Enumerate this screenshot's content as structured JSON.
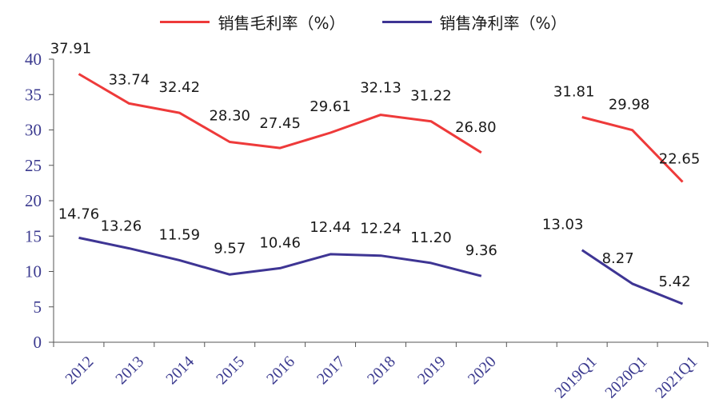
{
  "chart_data": {
    "type": "line",
    "title": "",
    "xlabel": "",
    "ylabel": "",
    "categories": [
      "2012",
      "2013",
      "2014",
      "2015",
      "2016",
      "2017",
      "2018",
      "2019",
      "2020",
      "",
      "2019Q1",
      "2020Q1",
      "2021Q1"
    ],
    "ylim": [
      0,
      40
    ],
    "yticks": [
      "0",
      "5",
      "10",
      "15",
      "20",
      "25",
      "30",
      "35",
      "40"
    ],
    "grid": false,
    "legend_position": "top",
    "series": [
      {
        "name": "销售毛利率（%）",
        "color": "#ee3a3a",
        "values": [
          37.91,
          33.74,
          32.42,
          28.3,
          27.45,
          29.61,
          32.13,
          31.22,
          26.8,
          null,
          31.81,
          29.98,
          22.65
        ],
        "labels": [
          "37.91",
          "33.74",
          "32.42",
          "28.30",
          "27.45",
          "29.61",
          "32.13",
          "31.22",
          "26.80",
          "",
          "31.81",
          "29.98",
          "22.65"
        ]
      },
      {
        "name": "销售净利率（%）",
        "color": "#3e3594",
        "values": [
          14.76,
          13.26,
          11.59,
          9.57,
          10.46,
          12.44,
          12.24,
          11.2,
          9.36,
          null,
          13.03,
          8.27,
          5.42
        ],
        "labels": [
          "14.76",
          "13.26",
          "11.59",
          "9.57",
          "10.46",
          "12.44",
          "12.24",
          "11.20",
          "9.36",
          "",
          "13.03",
          "8.27",
          "5.42"
        ]
      }
    ]
  }
}
